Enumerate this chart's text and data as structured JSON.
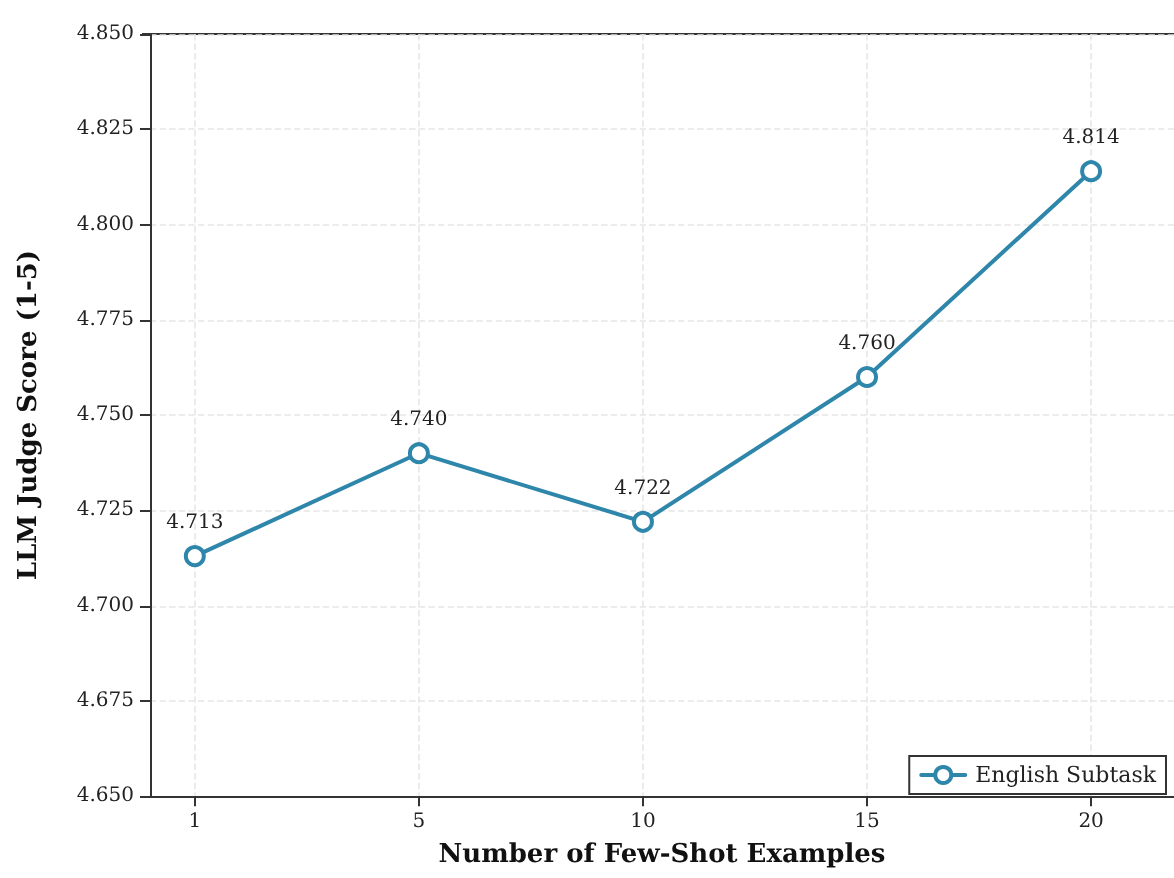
{
  "chart_data": {
    "type": "line",
    "xlabel": "Number of Few-Shot Examples",
    "ylabel": "LLM Judge Score (1-5)",
    "categories": [
      "1",
      "5",
      "10",
      "15",
      "20"
    ],
    "series": [
      {
        "name": "English Subtask",
        "color": "#2e86ab",
        "values": [
          4.713,
          4.74,
          4.722,
          4.76,
          4.814
        ],
        "value_labels": [
          "4.713",
          "4.740",
          "4.722",
          "4.760",
          "4.814"
        ]
      }
    ],
    "ylim": [
      4.65,
      4.85
    ],
    "yticks": [
      {
        "value": 4.65,
        "label": "4.650"
      },
      {
        "value": 4.675,
        "label": "4.675"
      },
      {
        "value": 4.7,
        "label": "4.700"
      },
      {
        "value": 4.725,
        "label": "4.725"
      },
      {
        "value": 4.75,
        "label": "4.750"
      },
      {
        "value": 4.775,
        "label": "4.775"
      },
      {
        "value": 4.8,
        "label": "4.800"
      },
      {
        "value": 4.825,
        "label": "4.825"
      },
      {
        "value": 4.85,
        "label": "4.850"
      }
    ],
    "grid": true,
    "legend": "bottom right",
    "marker": "circle",
    "line_style": "solid"
  }
}
